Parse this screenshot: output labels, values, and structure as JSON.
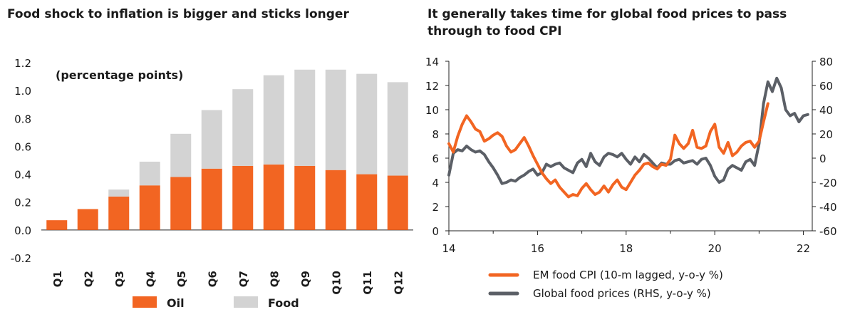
{
  "chart_data": [
    {
      "type": "bar",
      "title": "Food shock to inflation is bigger and sticks longer",
      "annotation": "(percentage points)",
      "stacked": true,
      "categories": [
        "Q1",
        "Q2",
        "Q3",
        "Q4",
        "Q5",
        "Q6",
        "Q7",
        "Q8",
        "Q9",
        "Q10",
        "Q11",
        "Q12"
      ],
      "series": [
        {
          "name": "Oil",
          "color": "#f26522",
          "values": [
            0.07,
            0.15,
            0.24,
            0.32,
            0.38,
            0.44,
            0.46,
            0.47,
            0.46,
            0.43,
            0.4,
            0.39
          ]
        },
        {
          "name": "Food",
          "color": "#d3d3d3",
          "values": [
            0.0,
            0.0,
            0.05,
            0.17,
            0.31,
            0.42,
            0.55,
            0.64,
            0.69,
            0.72,
            0.72,
            0.67
          ]
        }
      ],
      "ylim": [
        -0.2,
        1.2
      ],
      "yticks": [
        "-0.2",
        "0.0",
        "0.2",
        "0.4",
        "0.6",
        "0.8",
        "1.0",
        "1.2"
      ],
      "xlabel": "",
      "ylabel": "",
      "legend_position": "bottom"
    },
    {
      "type": "line",
      "title": "It generally takes time for global food prices to pass through to food CPI",
      "xlim": [
        14,
        22.2
      ],
      "xticks": [
        "14",
        "16",
        "18",
        "20",
        "22"
      ],
      "ylim_left": [
        0,
        14
      ],
      "yticks_left": [
        "0",
        "2",
        "4",
        "6",
        "8",
        "10",
        "12",
        "14"
      ],
      "ylim_right": [
        -60,
        80
      ],
      "yticks_right": [
        "-60",
        "-40",
        "-20",
        "0",
        "20",
        "40",
        "60",
        "80"
      ],
      "legend_position": "bottom",
      "series": [
        {
          "name": "EM food CPI (10-m lagged, y-o-y %)",
          "axis": "left",
          "color": "#f26522",
          "x": [
            14.0,
            14.1,
            14.2,
            14.3,
            14.4,
            14.5,
            14.6,
            14.7,
            14.8,
            14.9,
            15.0,
            15.1,
            15.2,
            15.3,
            15.4,
            15.5,
            15.6,
            15.7,
            15.8,
            15.9,
            16.0,
            16.1,
            16.2,
            16.3,
            16.4,
            16.5,
            16.6,
            16.7,
            16.8,
            16.9,
            17.0,
            17.1,
            17.2,
            17.3,
            17.4,
            17.5,
            17.6,
            17.7,
            17.8,
            17.9,
            18.0,
            18.1,
            18.2,
            18.3,
            18.4,
            18.5,
            18.6,
            18.7,
            18.8,
            18.9,
            19.0,
            19.1,
            19.2,
            19.3,
            19.4,
            19.5,
            19.6,
            19.7,
            19.8,
            19.9,
            20.0,
            20.1,
            20.2,
            20.3,
            20.4,
            20.5,
            20.6,
            20.7,
            20.8,
            20.9,
            21.0,
            21.1,
            21.2
          ],
          "y": [
            7.2,
            6.5,
            7.8,
            8.8,
            9.5,
            9.0,
            8.4,
            8.2,
            7.4,
            7.6,
            7.9,
            8.1,
            7.8,
            7.0,
            6.5,
            6.7,
            7.2,
            7.7,
            7.0,
            6.2,
            5.5,
            4.8,
            4.3,
            3.9,
            4.2,
            3.6,
            3.2,
            2.8,
            3.0,
            2.9,
            3.5,
            3.9,
            3.4,
            3.0,
            3.2,
            3.7,
            3.2,
            3.8,
            4.2,
            3.6,
            3.4,
            4.0,
            4.6,
            5.0,
            5.5,
            5.6,
            5.3,
            5.1,
            5.5,
            5.4,
            5.9,
            7.9,
            7.2,
            6.8,
            7.2,
            8.3,
            6.9,
            6.8,
            7.0,
            8.2,
            8.8,
            6.9,
            6.4,
            7.3,
            6.2,
            6.5,
            7.0,
            7.3,
            7.4,
            6.9,
            7.4,
            9.0,
            10.5
          ]
        },
        {
          "name": "Global food prices (RHS, y-o-y %)",
          "axis": "right",
          "color": "#5b5f66",
          "x": [
            14.0,
            14.1,
            14.2,
            14.3,
            14.4,
            14.5,
            14.6,
            14.7,
            14.8,
            14.9,
            15.0,
            15.1,
            15.2,
            15.3,
            15.4,
            15.5,
            15.6,
            15.7,
            15.8,
            15.9,
            16.0,
            16.1,
            16.2,
            16.3,
            16.4,
            16.5,
            16.6,
            16.7,
            16.8,
            16.9,
            17.0,
            17.1,
            17.2,
            17.3,
            17.4,
            17.5,
            17.6,
            17.7,
            17.8,
            17.9,
            18.0,
            18.1,
            18.2,
            18.3,
            18.4,
            18.5,
            18.6,
            18.7,
            18.8,
            18.9,
            19.0,
            19.1,
            19.2,
            19.3,
            19.4,
            19.5,
            19.6,
            19.7,
            19.8,
            19.9,
            20.0,
            20.1,
            20.2,
            20.3,
            20.4,
            20.5,
            20.6,
            20.7,
            20.8,
            20.9,
            21.0,
            21.1,
            21.2,
            21.3,
            21.4,
            21.5,
            21.6,
            21.7,
            21.8,
            21.9,
            22.0,
            22.1
          ],
          "y": [
            -14,
            4,
            7,
            6,
            10,
            7,
            5,
            6,
            3,
            -3,
            -8,
            -14,
            -21,
            -20,
            -18,
            -19,
            -16,
            -14,
            -11,
            -9,
            -14,
            -12,
            -5,
            -7,
            -5,
            -4,
            -8,
            -10,
            -12,
            -4,
            -1,
            -7,
            4,
            -3,
            -6,
            1,
            4,
            3,
            1,
            4,
            -1,
            -5,
            1,
            -3,
            3,
            0,
            -4,
            -8,
            -4,
            -5,
            -5,
            -2,
            -1,
            -4,
            -3,
            -2,
            -5,
            -1,
            0,
            -6,
            -15,
            -20,
            -18,
            -9,
            -6,
            -8,
            -10,
            -3,
            -1,
            -6,
            12,
            45,
            63,
            55,
            66,
            58,
            40,
            35,
            37,
            30,
            35,
            36
          ]
        }
      ]
    }
  ]
}
